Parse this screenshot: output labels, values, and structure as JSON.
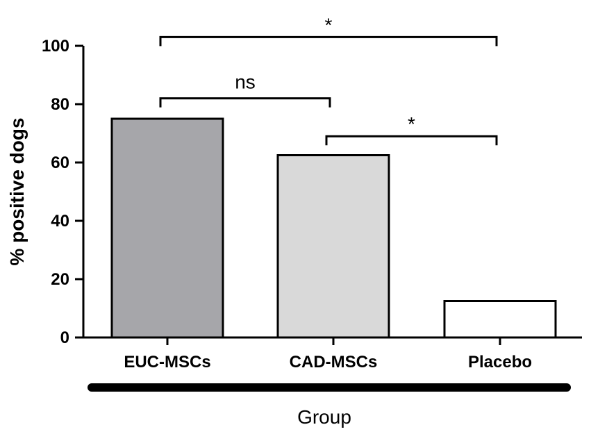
{
  "chart_data": {
    "type": "bar",
    "categories": [
      "EUC-MSCs",
      "CAD-MSCs",
      "Placebo"
    ],
    "values": [
      75,
      62.5,
      12.5
    ],
    "bar_colors": [
      "#a6a6aa",
      "#d9d9d9",
      "#ffffff"
    ],
    "ylabel": "% positive dogs",
    "xlabel": "Group",
    "ylim": [
      0,
      100
    ],
    "yticks": [
      "0",
      "20",
      "40",
      "60",
      "80",
      "100"
    ],
    "grid": false,
    "significance": [
      {
        "from": 0,
        "to": 2,
        "label": "*",
        "level": 103
      },
      {
        "from": 0,
        "to": 1,
        "label": "ns",
        "level": 82
      },
      {
        "from": 1,
        "to": 2,
        "label": "*",
        "level": 69
      }
    ]
  }
}
